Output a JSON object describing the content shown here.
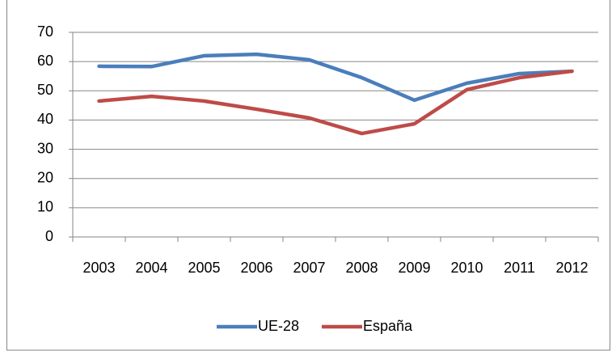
{
  "chart_data": {
    "type": "line",
    "categories": [
      "2003",
      "2004",
      "2005",
      "2006",
      "2007",
      "2008",
      "2009",
      "2010",
      "2011",
      "2012"
    ],
    "series": [
      {
        "name": "UE-28",
        "color": "#4a7ebb",
        "values": [
          58.4,
          58.3,
          62,
          62.5,
          60.6,
          54.5,
          46.8,
          52.6,
          55.9,
          56.7
        ]
      },
      {
        "name": "España",
        "color": "#be4b48",
        "values": [
          46.5,
          48.1,
          46.5,
          43.7,
          40.7,
          35.4,
          38.7,
          50.4,
          54.5,
          56.7
        ]
      }
    ],
    "ylim": [
      0,
      70
    ],
    "yticks": [
      0,
      10,
      20,
      30,
      40,
      50,
      60,
      70
    ],
    "grid": true,
    "legend": "bottom"
  }
}
